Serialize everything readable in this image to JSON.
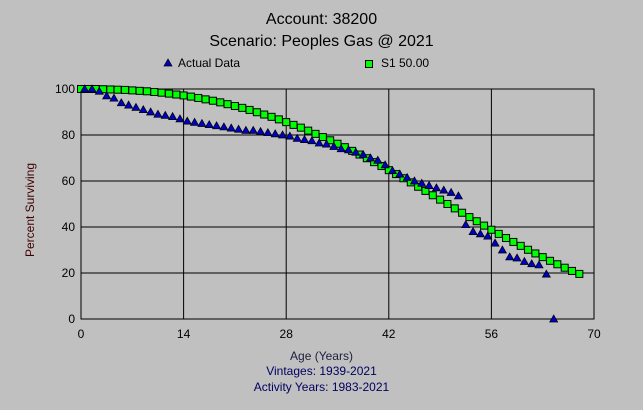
{
  "chart_data": {
    "type": "scatter",
    "title": "Account: 38200",
    "subtitle": "Scenario: Peoples Gas @ 2021",
    "xlabel": "Age (Years)",
    "ylabel": "Percent Surviving",
    "notes": [
      "Vintages: 1939-2021",
      "Activity Years: 1983-2021"
    ],
    "xlim": [
      0,
      70
    ],
    "ylim": [
      0,
      100
    ],
    "xticks": [
      0,
      14,
      28,
      42,
      56,
      70
    ],
    "yticks": [
      0,
      20,
      40,
      60,
      80,
      100
    ],
    "grid": true,
    "legend_placement": "top",
    "series": [
      {
        "name": "Actual Data",
        "marker": "triangle",
        "color": "#0000c0",
        "x": [
          0.5,
          1.5,
          2.5,
          3.5,
          4.5,
          5.5,
          6.5,
          7.5,
          8.5,
          9.5,
          10.5,
          11.5,
          12.5,
          13.5,
          14.5,
          15.5,
          16.5,
          17.5,
          18.5,
          19.5,
          20.5,
          21.5,
          22.5,
          23.5,
          24.5,
          25.5,
          26.5,
          27.5,
          28.5,
          29.5,
          30.5,
          31.5,
          32.5,
          33.5,
          34.5,
          35.5,
          36.5,
          37.5,
          38.5,
          39.5,
          40.5,
          41.5,
          42.5,
          43.5,
          44.5,
          45.5,
          46.5,
          47.5,
          48.5,
          49.5,
          50.5,
          51.5,
          52.5,
          53.5,
          54.5,
          55.5,
          56.5,
          57.5,
          58.5,
          59.5,
          60.5,
          61.5,
          62.5,
          63.5,
          64.5
        ],
        "y": [
          100,
          100,
          99,
          97,
          96,
          94,
          93,
          92,
          91,
          90,
          89,
          88.5,
          88,
          87,
          86,
          85.5,
          85,
          84.5,
          84,
          83.5,
          83,
          82.5,
          82,
          82,
          81.5,
          81,
          80.5,
          80,
          79.5,
          78.5,
          78,
          77.5,
          76.5,
          76,
          75,
          74,
          73.5,
          72.5,
          71.5,
          70,
          69,
          67,
          64.5,
          63,
          61.5,
          60,
          59,
          58,
          57,
          56,
          55,
          53.5,
          41,
          38,
          37,
          36,
          33,
          30,
          27,
          26.5,
          25,
          24,
          23.5,
          19.5,
          0
        ]
      },
      {
        "name": "S1 50.00",
        "marker": "square",
        "color": "#00ff00",
        "x": [
          0,
          1,
          2,
          3,
          4,
          5,
          6,
          7,
          8,
          9,
          10,
          11,
          12,
          13,
          14,
          15,
          16,
          17,
          18,
          19,
          20,
          21,
          22,
          23,
          24,
          25,
          26,
          27,
          28,
          29,
          30,
          31,
          32,
          33,
          34,
          35,
          36,
          37,
          38,
          39,
          40,
          41,
          42,
          43,
          44,
          45,
          46,
          47,
          48,
          49,
          50,
          51,
          52,
          53,
          54,
          55,
          56,
          57,
          58,
          59,
          60,
          61,
          62,
          63,
          64,
          65,
          66,
          67,
          68
        ],
        "y": [
          100,
          100,
          100,
          99.9,
          99.8,
          99.7,
          99.6,
          99.4,
          99.2,
          99,
          98.7,
          98.4,
          98,
          97.6,
          97.2,
          96.7,
          96.1,
          95.5,
          94.9,
          94.2,
          93.4,
          92.6,
          91.8,
          90.9,
          89.9,
          88.9,
          87.9,
          86.8,
          85.6,
          84.4,
          83.2,
          81.9,
          80.5,
          79.1,
          77.7,
          76.2,
          74.7,
          73.1,
          71.5,
          69.9,
          68.2,
          66.5,
          64.7,
          63,
          61.2,
          59.4,
          57.5,
          55.7,
          53.8,
          51.9,
          50,
          48.1,
          46.2,
          44.3,
          42.5,
          40.6,
          38.8,
          37,
          35.2,
          33.5,
          31.8,
          30.1,
          28.5,
          26.9,
          25.3,
          23.8,
          22.3,
          20.9,
          19.6
        ]
      }
    ]
  }
}
